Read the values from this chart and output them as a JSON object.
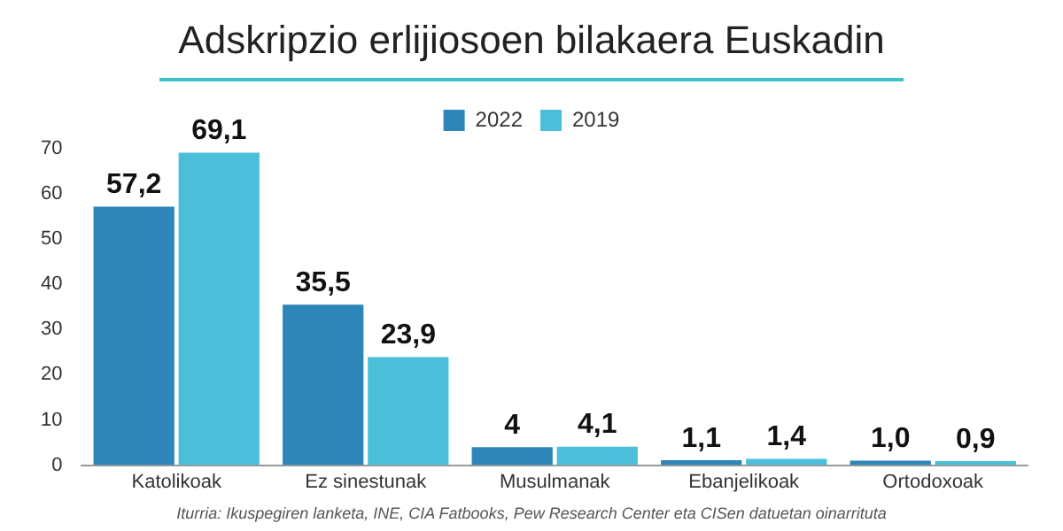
{
  "chart_data": {
    "type": "bar",
    "title": "Adskripzio erlijiosoen bilakaera Euskadin",
    "categories": [
      "Katolikoak",
      "Ez sinestunak",
      "Musulmanak",
      "Ebanjelikoak",
      "Ortodoxoak"
    ],
    "series": [
      {
        "name": "2022",
        "color": "#2e86b8",
        "values": [
          57.2,
          35.5,
          4,
          1.1,
          1.0
        ],
        "value_labels": [
          "57,2",
          "35,5",
          "4",
          "1,1",
          "1,0"
        ]
      },
      {
        "name": "2019",
        "color": "#4bbfd9",
        "values": [
          69.1,
          23.9,
          4.1,
          1.4,
          0.9
        ],
        "value_labels": [
          "69,1",
          "23,9",
          "4,1",
          "1,4",
          "0,9"
        ]
      }
    ],
    "ylim": [
      0,
      70
    ],
    "yticks": [
      0,
      10,
      20,
      30,
      40,
      50,
      60,
      70
    ],
    "grid": false,
    "legend": "top",
    "annotations": [
      "Iturria: Ikuspegiren lanketa, INE, CIA Fatbooks, Pew Research Center eta CISen datuetan oinarrituta"
    ]
  }
}
